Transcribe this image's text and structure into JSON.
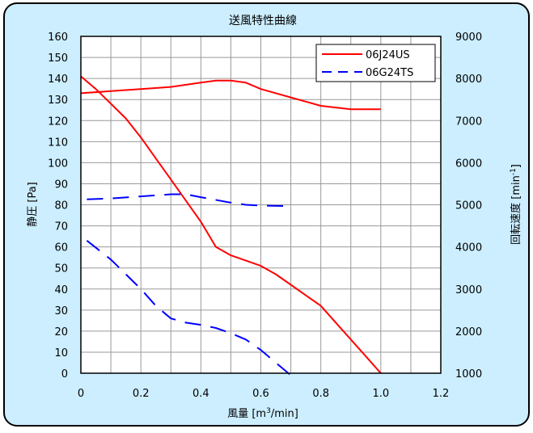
{
  "chart_data": {
    "type": "line",
    "title": "送風特性曲線",
    "xlabel_main": "風量 [m",
    "xlabel_sup": "3",
    "xlabel_tail": "/min]",
    "ylabel": "静圧 [Pa]",
    "y2label_main": "回転速度 [min",
    "y2label_sup": "-1",
    "y2label_tail": "]",
    "xlim": [
      0,
      1.2
    ],
    "ylim": [
      0,
      160
    ],
    "y2lim": [
      1000,
      9000
    ],
    "x_ticks": [
      "0",
      "0.2",
      "0.4",
      "0.6",
      "0.8",
      "1.0",
      "1.2"
    ],
    "y_ticks": [
      "0",
      "10",
      "20",
      "30",
      "40",
      "50",
      "60",
      "70",
      "80",
      "90",
      "100",
      "110",
      "120",
      "130",
      "140",
      "150",
      "160"
    ],
    "y2_ticks": [
      "1000",
      "2000",
      "3000",
      "4000",
      "5000",
      "6000",
      "7000",
      "8000",
      "9000"
    ],
    "grid": true,
    "legend_position": "top-right",
    "colors": {
      "background": "#cceeff",
      "plot_area": "#ffffff",
      "frame": "#000000",
      "grid": "#999999",
      "series_06J24US": "#ff0000",
      "series_06G24TS": "#0000ff"
    },
    "series": [
      {
        "name": "06J24US",
        "style": "solid",
        "color": "#ff0000",
        "pressure_curve": {
          "axis": "left",
          "points": [
            [
              0.0,
              141
            ],
            [
              0.05,
              135
            ],
            [
              0.1,
              128
            ],
            [
              0.15,
              121
            ],
            [
              0.2,
              112
            ],
            [
              0.25,
              102
            ],
            [
              0.3,
              92
            ],
            [
              0.35,
              82
            ],
            [
              0.4,
              72
            ],
            [
              0.45,
              60
            ],
            [
              0.5,
              56
            ],
            [
              0.55,
              53.5
            ],
            [
              0.6,
              51
            ],
            [
              0.65,
              47
            ],
            [
              0.7,
              42
            ],
            [
              0.75,
              37
            ],
            [
              0.8,
              32
            ],
            [
              0.85,
              24
            ],
            [
              0.9,
              16
            ],
            [
              0.95,
              8
            ],
            [
              1.0,
              0
            ]
          ]
        },
        "speed_curve": {
          "axis": "right",
          "points": [
            [
              0.0,
              7650
            ],
            [
              0.1,
              7700
            ],
            [
              0.2,
              7750
            ],
            [
              0.3,
              7800
            ],
            [
              0.4,
              7900
            ],
            [
              0.45,
              7950
            ],
            [
              0.5,
              7950
            ],
            [
              0.55,
              7900
            ],
            [
              0.6,
              7750
            ],
            [
              0.7,
              7550
            ],
            [
              0.8,
              7350
            ],
            [
              0.9,
              7270
            ],
            [
              1.0,
              7270
            ]
          ]
        }
      },
      {
        "name": "06G24TS",
        "style": "dashed",
        "color": "#0000ff",
        "pressure_curve": {
          "axis": "left",
          "points": [
            [
              0.02,
              63
            ],
            [
              0.1,
              54
            ],
            [
              0.15,
              47
            ],
            [
              0.2,
              40
            ],
            [
              0.25,
              32
            ],
            [
              0.3,
              26
            ],
            [
              0.35,
              24
            ],
            [
              0.4,
              23
            ],
            [
              0.45,
              21.5
            ],
            [
              0.5,
              19
            ],
            [
              0.55,
              16
            ],
            [
              0.6,
              11
            ],
            [
              0.65,
              5
            ],
            [
              0.7,
              -1
            ]
          ]
        },
        "speed_curve": {
          "axis": "right",
          "points": [
            [
              0.02,
              5130
            ],
            [
              0.1,
              5150
            ],
            [
              0.2,
              5200
            ],
            [
              0.3,
              5250
            ],
            [
              0.35,
              5250
            ],
            [
              0.4,
              5180
            ],
            [
              0.5,
              5050
            ],
            [
              0.55,
              5000
            ],
            [
              0.6,
              4980
            ],
            [
              0.7,
              4970
            ]
          ]
        }
      }
    ]
  }
}
